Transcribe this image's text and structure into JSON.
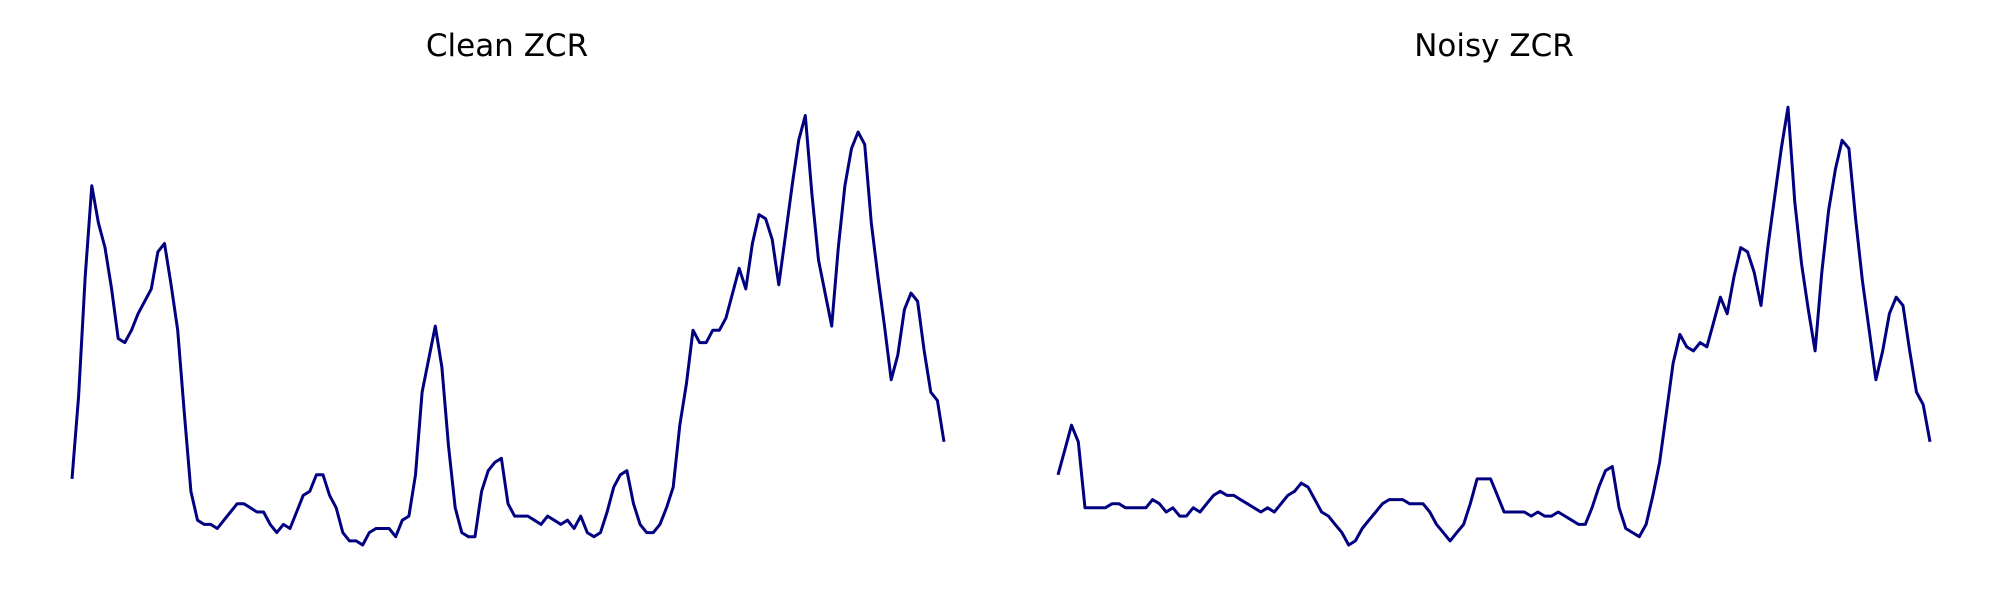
{
  "colors": {
    "line": "#000080",
    "background": "#ffffff"
  },
  "chart_data": [
    {
      "type": "line",
      "title": "Clean ZCR",
      "xlabel": "",
      "ylabel": "",
      "axes_visible": false,
      "grid": false,
      "ylim": [
        0,
        100
      ],
      "values": [
        16,
        36,
        65,
        87,
        78,
        72,
        62,
        50,
        49,
        52,
        56,
        59,
        62,
        71,
        73,
        63,
        52,
        32,
        13,
        6,
        5,
        5,
        4,
        6,
        8,
        10,
        10,
        9,
        8,
        8,
        5,
        3,
        5,
        4,
        8,
        12,
        13,
        17,
        17,
        12,
        9,
        3,
        1,
        1,
        0,
        3,
        4,
        4,
        4,
        2,
        6,
        7,
        17,
        37,
        45,
        53,
        43,
        24,
        9,
        3,
        2,
        2,
        13,
        18,
        20,
        21,
        10,
        7,
        7,
        7,
        6,
        5,
        7,
        6,
        5,
        6,
        4,
        7,
        3,
        2,
        3,
        8,
        14,
        17,
        18,
        10,
        5,
        3,
        3,
        5,
        9,
        14,
        29,
        39,
        52,
        49,
        49,
        52,
        52,
        55,
        61,
        67,
        62,
        73,
        80,
        79,
        74,
        63,
        75,
        87,
        98,
        104,
        85,
        69,
        61,
        53,
        72,
        87,
        96,
        100,
        97,
        78,
        65,
        53,
        40,
        46,
        57,
        61,
        59,
        47,
        37,
        35,
        25
      ]
    },
    {
      "type": "line",
      "title": "Noisy ZCR",
      "xlabel": "",
      "ylabel": "",
      "axes_visible": false,
      "grid": false,
      "ylim": [
        0,
        100
      ],
      "values": [
        17,
        23,
        29,
        25,
        9,
        9,
        9,
        9,
        10,
        10,
        9,
        9,
        9,
        9,
        11,
        10,
        8,
        9,
        7,
        7,
        9,
        8,
        10,
        12,
        13,
        12,
        12,
        11,
        10,
        9,
        8,
        9,
        8,
        10,
        12,
        13,
        15,
        14,
        11,
        8,
        7,
        5,
        3,
        0,
        1,
        4,
        6,
        8,
        10,
        11,
        11,
        11,
        10,
        10,
        10,
        8,
        5,
        3,
        1,
        3,
        5,
        10,
        16,
        16,
        16,
        12,
        8,
        8,
        8,
        8,
        7,
        8,
        7,
        7,
        8,
        7,
        6,
        5,
        5,
        9,
        14,
        18,
        19,
        9,
        4,
        3,
        2,
        5,
        12,
        20,
        32,
        44,
        51,
        48,
        47,
        49,
        48,
        54,
        60,
        56,
        65,
        72,
        71,
        66,
        58,
        72,
        84,
        96,
        106,
        83,
        68,
        57,
        47,
        66,
        81,
        91,
        98,
        96,
        79,
        64,
        52,
        40,
        47,
        56,
        60,
        58,
        47,
        37,
        34,
        25
      ]
    }
  ]
}
